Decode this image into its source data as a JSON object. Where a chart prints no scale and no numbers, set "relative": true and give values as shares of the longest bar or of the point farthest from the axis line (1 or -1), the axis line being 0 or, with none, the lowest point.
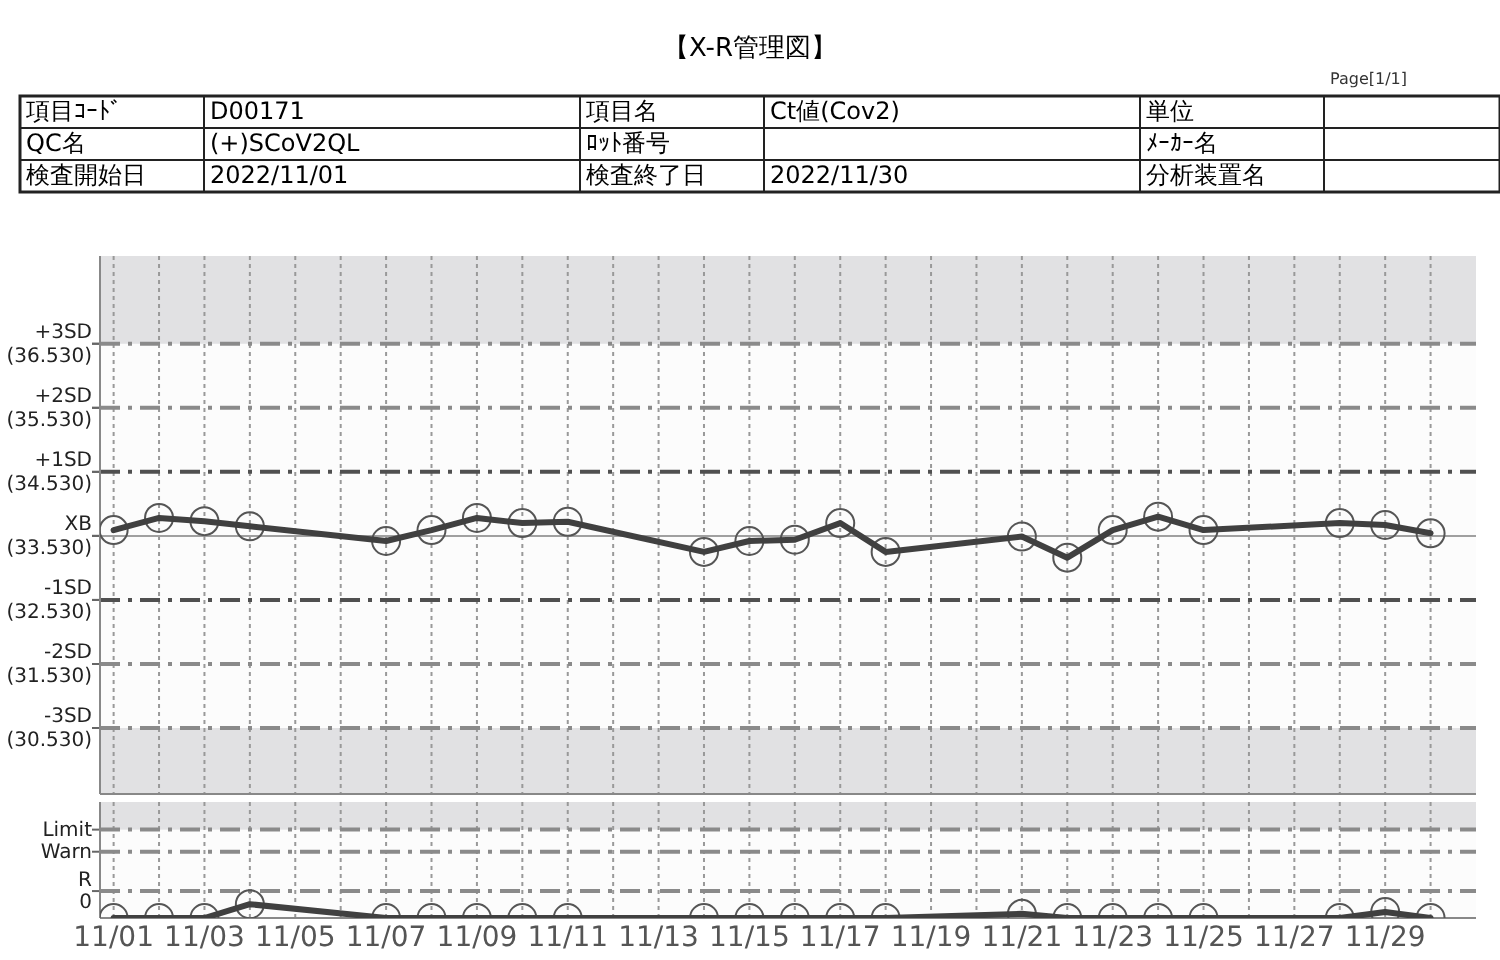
{
  "chart_data": [
    {
      "type": "other",
      "title": "【X-R管理図】",
      "annotations": [
        "Page[1/1]",
        "項目ｺｰﾄﾞ",
        "D00171",
        "項目名",
        "Ct値(Cov2)",
        "単位",
        null,
        "QC名",
        "(+)SCoV2QL",
        "ﾛｯﾄ番号",
        null,
        "ﾒｰｶｰ名",
        null,
        "検査開始日",
        "2022/11/01",
        "検査終了日",
        "2022/11/30",
        "分析装置名",
        null
      ]
    },
    {
      "type": "line",
      "categories": [
        null,
        null,
        null,
        null,
        null,
        null,
        null,
        null,
        null,
        null,
        null,
        null,
        null,
        null,
        null,
        null,
        null,
        null,
        null,
        null,
        null,
        null,
        null,
        null,
        null,
        null,
        null,
        null,
        null,
        null
      ],
      "series": [
        {
          "color": "#404040",
          "values": [
            33.62,
            33.81,
            33.76,
            33.68,
            null,
            null,
            33.45,
            33.62,
            33.81,
            33.73,
            33.75,
            null,
            null,
            33.28,
            33.45,
            33.47,
            33.73,
            33.28,
            null,
            null,
            33.52,
            33.19,
            33.62,
            33.83,
            33.62,
            null,
            null,
            33.73,
            33.7,
            33.57
          ]
        }
      ],
      "marker": "circle",
      "line_style": "solid",
      "grid": "x",
      "tick_labels": "y",
      "ylim": [
        29.5,
        37.9
      ],
      "yticks": [
        {
          "value": 36.53,
          "label": "(36.530)"
        },
        {
          "value": 35.53,
          "label": "(35.530)"
        },
        {
          "value": 34.53,
          "label": "(34.530)"
        },
        {
          "value": 33.53,
          "label": "(33.530)"
        },
        {
          "value": 32.53,
          "label": "(32.530)"
        },
        {
          "value": 31.53,
          "label": "(31.530)"
        },
        {
          "value": 30.53,
          "label": "(30.530)"
        }
      ],
      "ref_lines": [
        {
          "axis": "y",
          "value": 36.53,
          "label": "+3SD",
          "color": "#8a8a8a",
          "line_style": "dashed"
        },
        {
          "axis": "y",
          "value": 35.53,
          "label": "+2SD",
          "color": "#8a8a8a",
          "line_style": "dashed"
        },
        {
          "axis": "y",
          "value": 34.53,
          "label": "+1SD",
          "color": "#505050",
          "line_style": "dashed"
        },
        {
          "axis": "y",
          "value": 33.53,
          "label": "XB",
          "color": "#a0a0a0",
          "line_style": "solid"
        },
        {
          "axis": "y",
          "value": 32.53,
          "label": "-1SD",
          "color": "#505050",
          "line_style": "dashed"
        },
        {
          "axis": "y",
          "value": 31.53,
          "label": "-2SD",
          "color": "#8a8a8a",
          "line_style": "dashed"
        },
        {
          "axis": "y",
          "value": 30.53,
          "label": "-3SD",
          "color": "#8a8a8a",
          "line_style": "dashed"
        }
      ],
      "bands": [
        {
          "axis": "y",
          "from": 36.53,
          "to": 37.9,
          "color": "#e1e1e3"
        },
        {
          "axis": "y",
          "from": 29.5,
          "to": 30.53,
          "color": "#e1e1e3"
        }
      ]
    },
    {
      "type": "line",
      "relative": true,
      "categories": [
        "11/01",
        null,
        "11/03",
        null,
        "11/05",
        null,
        "11/07",
        null,
        "11/09",
        null,
        "11/11",
        null,
        "11/13",
        null,
        "11/15",
        null,
        "11/17",
        null,
        "11/19",
        null,
        "11/21",
        null,
        "11/23",
        null,
        "11/25",
        null,
        "11/27",
        null,
        "11/29",
        null
      ],
      "series": [
        {
          "color": "#404040",
          "values": [
            0,
            0,
            0,
            1,
            null,
            null,
            0,
            0,
            0,
            0,
            0,
            null,
            null,
            0,
            0,
            0,
            0,
            0,
            null,
            null,
            0.3,
            0,
            0,
            0,
            0,
            null,
            null,
            0,
            0.43,
            0
          ]
        }
      ],
      "marker": "circle",
      "line_style": "solid",
      "grid": "x",
      "tick_labels": "x",
      "ref_lines": [
        {
          "axis": "y",
          "value": 6.4,
          "label": "Limit",
          "color": "#8a8a8a",
          "line_style": "dashed"
        },
        {
          "axis": "y",
          "value": 4.8,
          "label": "Warn",
          "color": "#8a8a8a",
          "line_style": "dashed"
        },
        {
          "axis": "y",
          "value": 1.95,
          "label": "R\n0",
          "color": "#8a8a8a",
          "line_style": "dashed"
        }
      ],
      "bands": [
        {
          "axis": "y",
          "from": 6.4,
          "to": 8.4,
          "color": "#e1e1e3"
        }
      ]
    }
  ]
}
